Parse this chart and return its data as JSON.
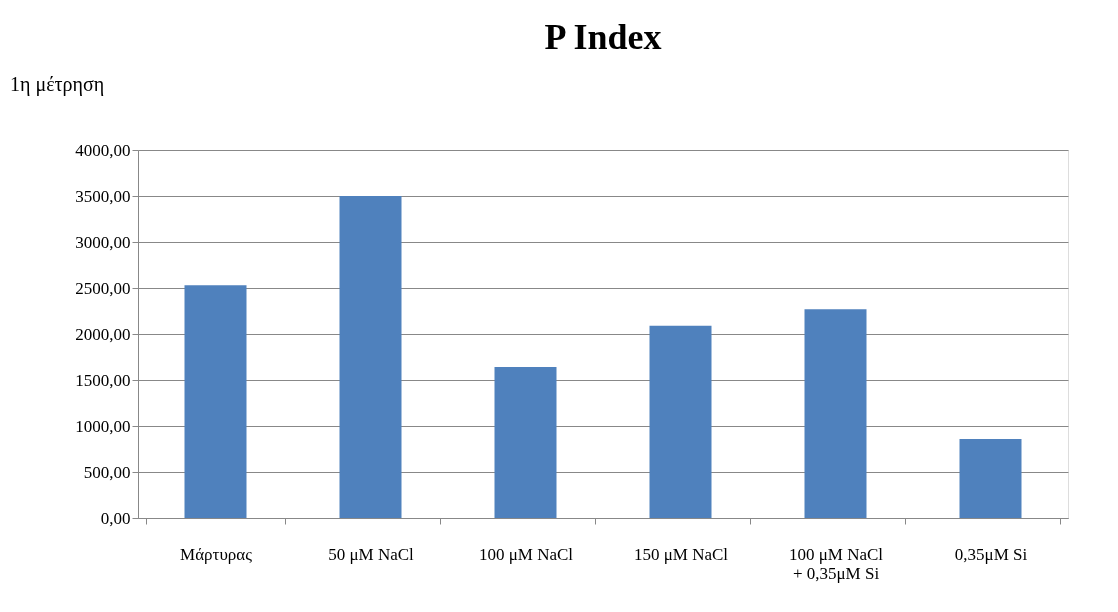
{
  "chart_data": {
    "type": "bar",
    "title": "P Index",
    "annotations": [
      "1η μέτρηση"
    ],
    "categories": [
      "Μάρτυρας",
      "50 μM NaCl",
      "100 μM NaCl",
      "150 μM NaCl",
      "100 μM NaCl\n+ 0,35μM Si",
      "0,35μM Si"
    ],
    "values": [
      2530,
      3500,
      1640,
      2090,
      2270,
      860
    ],
    "color": "#4f81bd",
    "ylim": [
      0,
      4000
    ],
    "yticks": [
      {
        "value": 0,
        "label": "0,00"
      },
      {
        "value": 500,
        "label": "500,00"
      },
      {
        "value": 1000,
        "label": "1000,00"
      },
      {
        "value": 1500,
        "label": "1500,00"
      },
      {
        "value": 2000,
        "label": "2000,00"
      },
      {
        "value": 2500,
        "label": "2500,00"
      },
      {
        "value": 3000,
        "label": "3000,00"
      },
      {
        "value": 3500,
        "label": "3500,00"
      },
      {
        "value": 4000,
        "label": "4000,00"
      }
    ],
    "grid": "y"
  }
}
